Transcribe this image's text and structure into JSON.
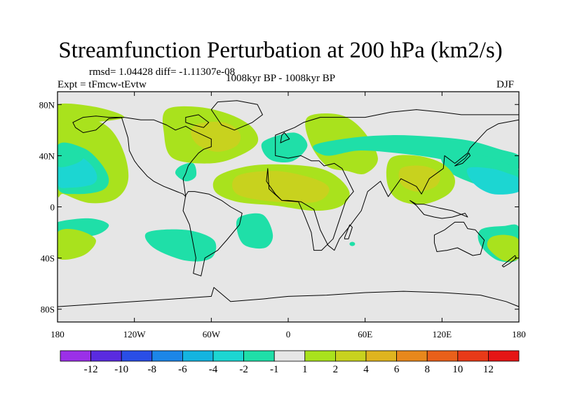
{
  "header": {
    "title": "Streamfunction Perturbation at 200 hPa (km2/s)",
    "stats": "rmsd= 1.04428 diff= -1.11307e-08",
    "period": "1008kyr BP - 1008kyr BP",
    "experiment": "Expt = tFmcw-tEvtw",
    "season": "DJF"
  },
  "chart_data": {
    "type": "heatmap",
    "title": "Streamfunction Perturbation at 200 hPa (km2/s)",
    "projection": "cylindrical-equidistant",
    "xlim": [
      -180,
      180
    ],
    "ylim": [
      -90,
      90
    ],
    "x_ticks": [
      {
        "value": -180,
        "label": "180"
      },
      {
        "value": -120,
        "label": "120W"
      },
      {
        "value": -60,
        "label": "60W"
      },
      {
        "value": 0,
        "label": "0"
      },
      {
        "value": 60,
        "label": "60E"
      },
      {
        "value": 120,
        "label": "120E"
      },
      {
        "value": 180,
        "label": "180"
      }
    ],
    "y_ticks": [
      {
        "value": 80,
        "label": "80N"
      },
      {
        "value": 40,
        "label": "40N"
      },
      {
        "value": 0,
        "label": "0"
      },
      {
        "value": -40,
        "label": "40S"
      },
      {
        "value": -80,
        "label": "80S"
      }
    ],
    "colorbar": {
      "labels": [
        "-12",
        "-10",
        "-8",
        "-6",
        "-4",
        "-2",
        "-1",
        "1",
        "2",
        "4",
        "6",
        "8",
        "10",
        "12"
      ],
      "colors": [
        "#9b30e8",
        "#5a2be0",
        "#2a4ee6",
        "#1c86e8",
        "#14b4e0",
        "#1cd6d2",
        "#1fdfa8",
        "#e6e6e6",
        "#a9e21d",
        "#c8d21e",
        "#dfb41f",
        "#e8881c",
        "#e9601a",
        "#e83a18",
        "#e51515"
      ]
    },
    "features": [
      {
        "name": "n-pacific-positive-band",
        "level": "1",
        "lon": [
          -180,
          -160,
          -140,
          -128,
          -125,
          -135,
          -155,
          -175,
          -180
        ],
        "lat": [
          70,
          70,
          62,
          42,
          20,
          6,
          3,
          10,
          12
        ]
      },
      {
        "name": "n-pacific-negative-core",
        "level": "-2",
        "lon": [
          -180,
          -160,
          -147,
          -140,
          -145,
          -165,
          -180
        ],
        "lat": [
          48,
          46,
          35,
          22,
          13,
          10,
          15
        ]
      },
      {
        "name": "n-pacific-negative-inner",
        "level": "-4",
        "lon": [
          -180,
          -160,
          -150,
          -152,
          -170,
          -180
        ],
        "lat": [
          44,
          38,
          27,
          18,
          15,
          18
        ]
      },
      {
        "name": "n-pacific-neutral-bubble",
        "level": "-1",
        "lon": [
          -180,
          -166,
          -160,
          -168,
          -180
        ],
        "lat": [
          47,
          44,
          38,
          33,
          32
        ]
      },
      {
        "name": "n-pacific-positive-strip",
        "level": "1",
        "lon": [
          -180,
          -150,
          -128,
          -155,
          -180
        ],
        "lat": [
          80,
          78,
          70,
          66,
          66
        ]
      },
      {
        "name": "n-america-positive",
        "level": "2",
        "lon": [
          -95,
          -70,
          -45,
          -28,
          -24,
          -38,
          -60,
          -90,
          -97
        ],
        "lat": [
          76,
          78,
          72,
          62,
          50,
          40,
          34,
          38,
          58
        ]
      },
      {
        "name": "n-america-positive-core",
        "level": "4",
        "lon": [
          -70,
          -50,
          -38,
          -40,
          -55,
          -70,
          -76
        ],
        "lat": [
          65,
          66,
          58,
          48,
          43,
          48,
          58
        ]
      },
      {
        "name": "n-atlantic-trough",
        "level": "-1",
        "lon": [
          -18,
          5,
          15,
          4,
          -12,
          -20
        ],
        "lat": [
          52,
          58,
          48,
          36,
          36,
          44
        ]
      },
      {
        "name": "mediterranean-ridge",
        "level": "2",
        "lon": [
          15,
          40,
          58,
          70,
          60,
          46,
          30,
          17
        ],
        "lat": [
          70,
          72,
          60,
          38,
          26,
          28,
          32,
          50
        ]
      },
      {
        "name": "w-pacific-eurasia-trough",
        "level": "-1",
        "lon": [
          20,
          50,
          80,
          110,
          140,
          165,
          180,
          180,
          160,
          140,
          115,
          85,
          55,
          30
        ],
        "lat": [
          48,
          54,
          56,
          55,
          52,
          45,
          40,
          30,
          30,
          32,
          38,
          42,
          44,
          40
        ]
      },
      {
        "name": "w-pacific-trough-core",
        "level": "-2",
        "lon": [
          120,
          140,
          160,
          175,
          180,
          180,
          160,
          140,
          125
        ],
        "lat": [
          40,
          42,
          38,
          32,
          28,
          14,
          14,
          20,
          28
        ]
      },
      {
        "name": "w-pacific-trough-inner",
        "level": "-4",
        "lon": [
          140,
          158,
          172,
          180,
          180,
          160,
          145
        ],
        "lat": [
          30,
          30,
          26,
          22,
          12,
          10,
          18
        ]
      },
      {
        "name": "asia-positive",
        "level": "1",
        "lon": [
          80,
          100,
          120,
          130,
          125,
          105,
          85,
          77
        ],
        "lat": [
          38,
          40,
          34,
          22,
          10,
          2,
          6,
          20
        ]
      },
      {
        "name": "asia-positive-core",
        "level": "4",
        "lon": [
          88,
          105,
          118,
          115,
          100,
          88
        ],
        "lat": [
          30,
          32,
          26,
          16,
          12,
          18
        ]
      },
      {
        "name": "n-atlantic-africa-ridge",
        "level": "2",
        "lon": [
          -55,
          -30,
          0,
          25,
          40,
          48,
          40,
          20,
          -10,
          -40,
          -57
        ],
        "lat": [
          24,
          32,
          33,
          30,
          22,
          10,
          0,
          -3,
          1,
          4,
          12
        ]
      },
      {
        "name": "n-atlantic-africa-ridge-core",
        "level": "4",
        "lon": [
          -40,
          -10,
          20,
          32,
          22,
          -10,
          -40
        ],
        "lat": [
          24,
          28,
          22,
          14,
          4,
          4,
          10
        ]
      },
      {
        "name": "caribbean-trough",
        "level": "-1",
        "lon": [
          -84,
          -74,
          -72,
          -80,
          -88
        ],
        "lat": [
          32,
          34,
          24,
          20,
          26
        ]
      },
      {
        "name": "s-pacific-trough",
        "level": "-1",
        "lon": [
          -180,
          -155,
          -140,
          -150,
          -175,
          -180
        ],
        "lat": [
          -12,
          -9,
          -14,
          -22,
          -24,
          -18
        ]
      },
      {
        "name": "s-pacific-ridge",
        "level": "1",
        "lon": [
          -180,
          -165,
          -150,
          -160,
          -180
        ],
        "lat": [
          -20,
          -18,
          -26,
          -38,
          -40
        ]
      },
      {
        "name": "s-america-trough",
        "level": "-1",
        "lon": [
          -110,
          -80,
          -58,
          -60,
          -80,
          -105
        ],
        "lat": [
          -20,
          -18,
          -26,
          -40,
          -42,
          -32
        ]
      },
      {
        "name": "s-atlantic-trough",
        "level": "-1",
        "lon": [
          -38,
          -20,
          -12,
          -18,
          -34,
          -40
        ],
        "lat": [
          -8,
          -6,
          -22,
          -32,
          -30,
          -18
        ]
      },
      {
        "name": "australia-trough",
        "level": "-1",
        "lon": [
          150,
          168,
          180,
          180,
          164,
          150
        ],
        "lat": [
          -18,
          -15,
          -16,
          -40,
          -42,
          -30
        ]
      },
      {
        "name": "australia-trough-core",
        "level": "1",
        "lon": [
          158,
          170,
          180,
          180,
          168,
          156
        ],
        "lat": [
          -24,
          -22,
          -26,
          -40,
          -42,
          -32
        ]
      }
    ],
    "spots": [
      {
        "name": "se-atlantic-spot",
        "level": "-1",
        "lon": 50,
        "lat": -29
      }
    ],
    "land": [
      {
        "name": "north-america",
        "lon": [
          -168,
          -160,
          -150,
          -140,
          -130,
          -125,
          -124,
          -120,
          -117,
          -110,
          -105,
          -97,
          -92,
          -87,
          -82,
          -80,
          -82,
          -80,
          -78,
          -75,
          -70,
          -66,
          -60,
          -60,
          -75,
          -80,
          -88,
          -95,
          -105,
          -115,
          -128,
          -140,
          -150,
          -160,
          -166
        ],
        "lat": [
          66,
          70,
          71,
          70,
          70,
          54,
          44,
          36,
          32,
          24,
          20,
          16,
          14,
          12,
          10,
          8,
          22,
          26,
          32,
          36,
          42,
          45,
          47,
          53,
          60,
          63,
          60,
          64,
          68,
          68,
          70,
          69,
          60,
          58,
          62
        ]
      },
      {
        "name": "greenland",
        "lon": [
          -55,
          -40,
          -24,
          -20,
          -28,
          -42,
          -52,
          -60
        ],
        "lat": [
          82,
          83,
          80,
          72,
          66,
          60,
          64,
          76
        ]
      },
      {
        "name": "south-america",
        "lon": [
          -80,
          -78,
          -73,
          -62,
          -52,
          -45,
          -36,
          -38,
          -48,
          -55,
          -65,
          -68,
          -74,
          -72,
          -77,
          -82
        ],
        "lat": [
          9,
          12,
          12,
          10,
          5,
          0,
          -5,
          -14,
          -26,
          -34,
          -40,
          -54,
          -52,
          -40,
          -14,
          -3
        ]
      },
      {
        "name": "africa-eurasia",
        "lon": [
          -16,
          -17,
          -10,
          -5,
          0,
          10,
          20,
          25,
          31,
          36,
          40,
          48,
          57,
          62,
          72,
          78,
          88,
          100,
          104,
          110,
          121,
          122,
          130,
          140,
          142,
          155,
          164,
          180,
          180,
          160,
          135,
          120,
          100,
          80,
          60,
          40,
          25,
          12,
          5,
          -5,
          -10,
          -10,
          0,
          10,
          18,
          24,
          28,
          36,
          42,
          51,
          45,
          40,
          35,
          32,
          26,
          20,
          18,
          12,
          8,
          -5,
          -15
        ],
        "lat": [
          30,
          20,
          10,
          5,
          5,
          4,
          -2,
          -18,
          -30,
          -34,
          -25,
          -15,
          -3,
          12,
          20,
          8,
          22,
          16,
          10,
          22,
          30,
          40,
          34,
          42,
          46,
          60,
          65,
          68,
          72,
          72,
          72,
          74,
          76,
          74,
          70,
          70,
          70,
          66,
          62,
          58,
          56,
          40,
          38,
          40,
          36,
          36,
          32,
          34,
          30,
          12,
          5,
          -10,
          -25,
          -28,
          -34,
          -34,
          -20,
          -5,
          4,
          5,
          14
        ]
      },
      {
        "name": "australia",
        "lon": [
          114,
          122,
          130,
          137,
          140,
          146,
          153,
          150,
          144,
          138,
          132,
          124,
          116,
          114
        ],
        "lat": [
          -22,
          -18,
          -12,
          -12,
          -17,
          -18,
          -26,
          -37,
          -38,
          -35,
          -32,
          -34,
          -35,
          -28
        ]
      },
      {
        "name": "antarctica",
        "lon": [
          -180,
          -150,
          -120,
          -90,
          -60,
          -58,
          -45,
          -20,
          0,
          30,
          60,
          90,
          120,
          150,
          170,
          180,
          180,
          -180
        ],
        "lat": [
          -78,
          -76,
          -74,
          -72,
          -70,
          -63,
          -74,
          -72,
          -70,
          -69,
          -67,
          -66,
          -67,
          -69,
          -74,
          -78,
          -90,
          -90
        ]
      },
      {
        "name": "britain",
        "lon": [
          -6,
          -2,
          1,
          -3,
          -5
        ],
        "lat": [
          50,
          52,
          53,
          58,
          56
        ]
      },
      {
        "name": "japan",
        "lon": [
          130,
          134,
          138,
          141,
          142,
          136
        ],
        "lat": [
          32,
          35,
          38,
          42,
          40,
          34
        ]
      },
      {
        "name": "madagascar",
        "lon": [
          44,
          48,
          50,
          47,
          44
        ],
        "lat": [
          -24,
          -14,
          -16,
          -25,
          -25
        ]
      },
      {
        "name": "new-zealand",
        "lon": [
          167,
          172,
          177,
          178,
          173,
          168
        ],
        "lat": [
          -46,
          -42,
          -38,
          -40,
          -44,
          -47
        ]
      },
      {
        "name": "indonesia",
        "lon": [
          95,
          100,
          106,
          114,
          120,
          128,
          138,
          140,
          128,
          118,
          106,
          100
        ],
        "lat": [
          5,
          1,
          -6,
          -8,
          -9,
          -8,
          -5,
          -8,
          -3,
          -1,
          2,
          2
        ]
      },
      {
        "name": "baffin",
        "lon": [
          -80,
          -70,
          -62,
          -66,
          -74,
          -80
        ],
        "lat": [
          70,
          72,
          66,
          62,
          64,
          66
        ]
      }
    ]
  }
}
